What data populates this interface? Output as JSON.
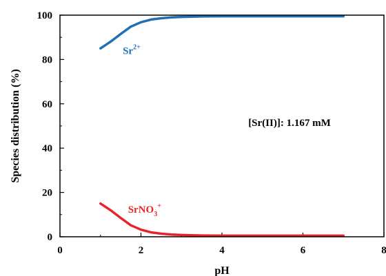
{
  "chart_data": {
    "type": "line",
    "xlabel": "pH",
    "ylabel": "Species distribution (%)",
    "xlim": [
      0,
      8
    ],
    "ylim": [
      0,
      100
    ],
    "xticks": [
      0,
      2,
      4,
      6,
      8
    ],
    "yticks": [
      0,
      20,
      40,
      60,
      80,
      100
    ],
    "grid": false,
    "annotation": "[Sr(II)]: 1.167 mM",
    "series": [
      {
        "label_base": "Sr",
        "label_sup": "2+",
        "color": "#1f6fb5",
        "x": [
          1.0,
          1.25,
          1.5,
          1.75,
          2.0,
          2.25,
          2.5,
          2.75,
          3.0,
          3.5,
          4.0,
          5.0,
          6.0,
          7.0
        ],
        "y": [
          85.0,
          88.0,
          91.5,
          94.8,
          96.8,
          98.0,
          98.6,
          99.0,
          99.2,
          99.4,
          99.5,
          99.5,
          99.5,
          99.5
        ]
      },
      {
        "label_base": "SrNO",
        "label_sub": "3",
        "label_sup": "+",
        "color": "#e8232a",
        "x": [
          1.0,
          1.25,
          1.5,
          1.75,
          2.0,
          2.25,
          2.5,
          2.75,
          3.0,
          3.5,
          4.0,
          5.0,
          6.0,
          7.0
        ],
        "y": [
          15.0,
          12.0,
          8.5,
          5.2,
          3.2,
          2.0,
          1.4,
          1.0,
          0.8,
          0.6,
          0.5,
          0.5,
          0.5,
          0.5
        ]
      }
    ]
  }
}
